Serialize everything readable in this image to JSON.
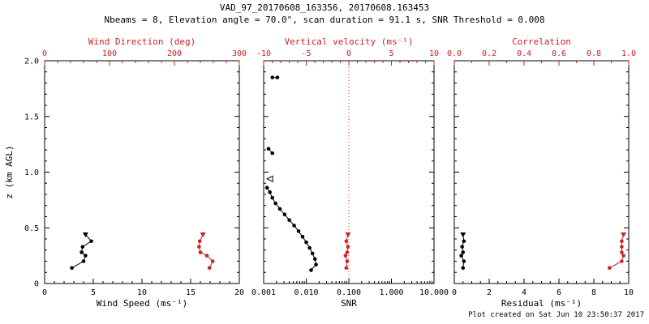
{
  "header": {
    "title": "VAD_97_20170608_163356, 20170608.163453",
    "subtitle": "Nbeams = 8, Elevation angle = 70.0°, scan duration = 91.1 s, SNR Threshold = 0.008"
  },
  "footer": {
    "created": "Plot created on Sat Jun 10 23:50:37 2017"
  },
  "colors": {
    "axis_black": "#000000",
    "accent_red": "#cc2222"
  },
  "chart_data": [
    {
      "name": "wind",
      "type": "scatter",
      "ylabel": "z (km AGL)",
      "ylim": [
        0,
        2.0
      ],
      "yticks": [
        0,
        0.5,
        1.0,
        1.5,
        2.0
      ],
      "ytick_labels": [
        "0",
        "0.5",
        "1.0",
        "1.5",
        "2.0"
      ],
      "show_ylabels": true,
      "bottom": {
        "label": "Wind Speed (ms⁻¹)",
        "scale": "linear",
        "lim": [
          0,
          20
        ],
        "ticks": [
          0,
          5,
          10,
          15,
          20
        ],
        "tick_labels": [
          "0",
          "5",
          "10",
          "15",
          "20"
        ],
        "minor": 5,
        "color": "#000000"
      },
      "top": {
        "label": "Wind Direction (deg)",
        "scale": "linear",
        "lim": [
          0,
          300
        ],
        "ticks": [
          0,
          100,
          200,
          300
        ],
        "tick_labels": [
          "0",
          "100",
          "200",
          "300"
        ],
        "minor": 5,
        "color": "#cc2222"
      },
      "series": [
        {
          "name": "wind-speed",
          "axis": "bottom",
          "color": "#000000",
          "line": true,
          "marker": "circle",
          "top_marker": "triangle-down",
          "z": [
            0.14,
            0.2,
            0.25,
            0.28,
            0.33,
            0.38,
            0.44
          ],
          "v": [
            2.8,
            4.0,
            4.2,
            3.8,
            3.9,
            4.8,
            4.2
          ]
        },
        {
          "name": "wind-direction",
          "axis": "top",
          "color": "#cc2222",
          "line": true,
          "marker": "circle",
          "top_marker": "triangle-down",
          "z": [
            0.14,
            0.2,
            0.25,
            0.28,
            0.33,
            0.38,
            0.44
          ],
          "v": [
            254,
            259,
            250,
            240,
            238,
            239,
            244
          ]
        }
      ]
    },
    {
      "name": "snr",
      "type": "scatter",
      "ylabel": "",
      "ylim": [
        0,
        2.0
      ],
      "yticks": [
        0,
        0.5,
        1.0,
        1.5,
        2.0
      ],
      "ytick_labels": [
        "0",
        "0.5",
        "1.0",
        "1.5",
        "2.0"
      ],
      "show_ylabels": false,
      "bottom": {
        "label": "SNR",
        "scale": "log",
        "lim": [
          0.001,
          10
        ],
        "ticks": [
          0.001,
          0.01,
          0.1,
          1.0,
          10.0
        ],
        "tick_labels": [
          "0.001",
          "0.010",
          "0.100",
          "1.000",
          "10.000"
        ],
        "color": "#000000"
      },
      "top": {
        "label": "Vertical velocity (ms⁻¹)",
        "scale": "linear",
        "lim": [
          -10,
          10
        ],
        "ticks": [
          -10,
          -5,
          0,
          5,
          10
        ],
        "tick_labels": [
          "-10",
          "-5",
          "0",
          "5",
          "10"
        ],
        "minor": 5,
        "color": "#cc2222"
      },
      "refline": {
        "axis": "top",
        "value": 0,
        "color": "#cc2222",
        "style": "dotted"
      },
      "series": [
        {
          "name": "snr-profile",
          "axis": "bottom",
          "color": "#000000",
          "line": true,
          "marker": "circle",
          "z": [
            0.12,
            0.17,
            0.22,
            0.27,
            0.32,
            0.37,
            0.42,
            0.47,
            0.52,
            0.57,
            0.62,
            0.67,
            0.72,
            0.77,
            0.82,
            0.86
          ],
          "v": [
            0.013,
            0.017,
            0.016,
            0.014,
            0.012,
            0.01,
            0.0082,
            0.0066,
            0.0052,
            0.004,
            0.0031,
            0.0024,
            0.0019,
            0.0016,
            0.0014,
            0.0012
          ]
        },
        {
          "name": "snr-cluster-mid",
          "axis": "bottom",
          "color": "#000000",
          "line": true,
          "marker": "circle",
          "z": [
            1.17,
            1.21
          ],
          "v": [
            0.0016,
            0.0013
          ]
        },
        {
          "name": "snr-cluster-high",
          "axis": "bottom",
          "color": "#000000",
          "line": true,
          "marker": "circle",
          "z": [
            1.85,
            1.85
          ],
          "v": [
            0.0021,
            0.0016
          ]
        },
        {
          "name": "snr-flag",
          "axis": "bottom",
          "color": "#000000",
          "line": false,
          "marker": "triangle-left",
          "z": [
            0.94
          ],
          "v": [
            0.0014
          ]
        },
        {
          "name": "vertical-velocity",
          "axis": "top",
          "color": "#cc2222",
          "line": true,
          "marker": "circle",
          "top_marker": "triangle-down",
          "z": [
            0.14,
            0.2,
            0.25,
            0.28,
            0.33,
            0.38,
            0.44
          ],
          "v": [
            -0.3,
            -0.2,
            -0.4,
            -0.2,
            -0.1,
            -0.3,
            -0.1
          ]
        }
      ]
    },
    {
      "name": "residual",
      "type": "scatter",
      "ylabel": "",
      "ylim": [
        0,
        2.0
      ],
      "yticks": [
        0,
        0.5,
        1.0,
        1.5,
        2.0
      ],
      "ytick_labels": [
        "0",
        "0.5",
        "1.0",
        "1.5",
        "2.0"
      ],
      "show_ylabels": false,
      "bottom": {
        "label": "Residual (ms⁻¹)",
        "scale": "linear",
        "lim": [
          0,
          10
        ],
        "ticks": [
          0,
          2,
          4,
          6,
          8,
          10
        ],
        "tick_labels": [
          "0",
          "2",
          "4",
          "6",
          "8",
          "10"
        ],
        "minor": 4,
        "color": "#000000"
      },
      "top": {
        "label": "Correlation",
        "scale": "linear",
        "lim": [
          0.0,
          1.0
        ],
        "ticks": [
          0.0,
          0.2,
          0.4,
          0.6,
          0.8,
          1.0
        ],
        "tick_labels": [
          "0.0",
          "0.2",
          "0.4",
          "0.6",
          "0.8",
          "1.0"
        ],
        "minor": 2,
        "color": "#cc2222"
      },
      "series": [
        {
          "name": "residual",
          "axis": "bottom",
          "color": "#000000",
          "line": true,
          "marker": "circle",
          "top_marker": "triangle-down",
          "z": [
            0.14,
            0.2,
            0.25,
            0.28,
            0.33,
            0.38,
            0.44
          ],
          "v": [
            0.5,
            0.55,
            0.4,
            0.5,
            0.45,
            0.55,
            0.5
          ]
        },
        {
          "name": "correlation",
          "axis": "top",
          "color": "#cc2222",
          "line": true,
          "marker": "circle",
          "top_marker": "triangle-down",
          "z": [
            0.14,
            0.2,
            0.25,
            0.28,
            0.33,
            0.38,
            0.44
          ],
          "v": [
            0.89,
            0.96,
            0.97,
            0.96,
            0.96,
            0.96,
            0.97
          ]
        }
      ]
    }
  ]
}
